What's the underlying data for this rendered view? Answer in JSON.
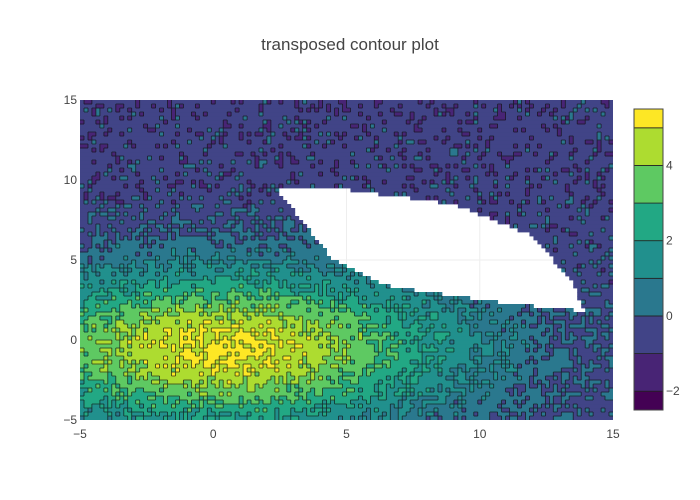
{
  "chart_data": {
    "type": "contour",
    "title": "transposed contour plot",
    "xlabel": "",
    "ylabel": "",
    "xlim": [
      -5,
      15
    ],
    "ylim": [
      -5,
      15
    ],
    "x_ticks": [
      "−5",
      "0",
      "5",
      "10",
      "15"
    ],
    "y_ticks": [
      "−5",
      "0",
      "5",
      "10",
      "15"
    ],
    "x_tick_values": [
      -5,
      0,
      5,
      10,
      15
    ],
    "y_tick_values": [
      -5,
      0,
      5,
      10,
      15
    ],
    "colorscale": "Viridis",
    "z_range": [
      -2.5,
      5.5
    ],
    "contour_levels": [
      -2,
      -1,
      0,
      1,
      2,
      3,
      4,
      5
    ],
    "colorbar_ticks": [
      "−2",
      "0",
      "2",
      "4"
    ],
    "colorbar_tick_values": [
      -2,
      0,
      2,
      4
    ],
    "peak": {
      "x": 0.4,
      "y": -0.5,
      "z": 5.2
    },
    "blank_region_vertices": [
      [
        2.5,
        9.5
      ],
      [
        5,
        9.4
      ],
      [
        9,
        8.5
      ],
      [
        12,
        6.5
      ],
      [
        13.5,
        3.5
      ],
      [
        13.9,
        1.8
      ],
      [
        10.5,
        2.4
      ],
      [
        6.5,
        3.4
      ],
      [
        4.5,
        5
      ],
      [
        3.3,
        7.5
      ],
      [
        2.5,
        9.2
      ]
    ],
    "grid": true,
    "colors": {
      "background": "#ffffff",
      "axis_text": "#444444",
      "contour_line": "#111111"
    }
  }
}
